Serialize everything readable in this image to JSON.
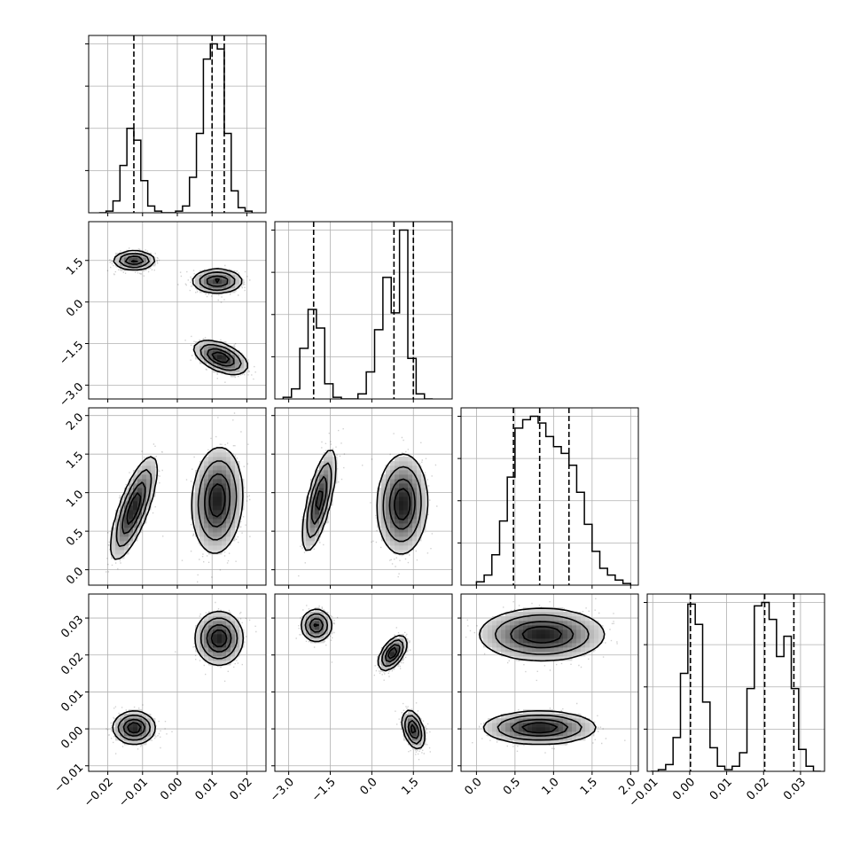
{
  "chart_data": {
    "type": "corner",
    "n_params": 4,
    "parameters": [
      {
        "name": "",
        "range": [
          -0.0255,
          0.0255
        ],
        "ticks": [
          -0.02,
          -0.01,
          0.0,
          0.01,
          0.02
        ],
        "tick_labels": [
          "−0.02",
          "−0.01",
          "0.00",
          "0.01",
          "0.02"
        ],
        "quantiles": [
          -0.0125,
          0.01,
          0.0135
        ],
        "hist": {
          "bin_edges": [
            -0.0225,
            -0.0205,
            -0.0185,
            -0.0165,
            -0.0145,
            -0.0125,
            -0.0105,
            -0.0085,
            -0.0065,
            -0.0045,
            -0.0025,
            -0.0005,
            0.0015,
            0.0035,
            0.0055,
            0.0075,
            0.0095,
            0.0115,
            0.0135,
            0.0155,
            0.0175,
            0.0195,
            0.0215
          ],
          "counts": [
            0.0,
            0.01,
            0.07,
            0.28,
            0.5,
            0.43,
            0.19,
            0.04,
            0.01,
            0.0,
            0.0,
            0.01,
            0.04,
            0.21,
            0.47,
            0.91,
            1.0,
            0.97,
            0.47,
            0.13,
            0.03,
            0.01
          ]
        }
      },
      {
        "name": "",
        "range": [
          -3.5,
          2.9
        ],
        "ticks": [
          -3.0,
          -1.5,
          0.0,
          1.5
        ],
        "tick_labels": [
          "−3.0",
          "−1.5",
          "0.0",
          "1.5"
        ],
        "quantiles": [
          -2.1,
          0.8,
          1.5
        ],
        "hist": {
          "bin_edges": [
            -3.2,
            -2.9,
            -2.6,
            -2.3,
            -2.0,
            -1.7,
            -1.4,
            -1.1,
            -0.8,
            -0.5,
            -0.2,
            0.1,
            0.4,
            0.7,
            1.0,
            1.3,
            1.6,
            1.9,
            2.2
          ],
          "counts": [
            0.01,
            0.06,
            0.3,
            0.53,
            0.42,
            0.09,
            0.01,
            0.0,
            0.0,
            0.03,
            0.16,
            0.41,
            0.72,
            0.51,
            1.0,
            0.24,
            0.03,
            0.0
          ]
        }
      },
      {
        "name": "",
        "range": [
          -0.2,
          2.1
        ],
        "ticks": [
          0.0,
          0.5,
          1.0,
          1.5,
          2.0
        ],
        "tick_labels": [
          "0.0",
          "0.5",
          "1.0",
          "1.5",
          "2.0"
        ],
        "quantiles": [
          0.48,
          0.82,
          1.2
        ],
        "hist": {
          "bin_edges": [
            0.0,
            0.1,
            0.2,
            0.3,
            0.4,
            0.5,
            0.6,
            0.7,
            0.8,
            0.9,
            1.0,
            1.1,
            1.2,
            1.3,
            1.4,
            1.5,
            1.6,
            1.7,
            1.8,
            1.9,
            2.0
          ],
          "counts": [
            0.02,
            0.06,
            0.18,
            0.38,
            0.64,
            0.93,
            0.98,
            1.0,
            0.96,
            0.88,
            0.82,
            0.78,
            0.71,
            0.55,
            0.36,
            0.2,
            0.1,
            0.06,
            0.03,
            0.01
          ]
        }
      },
      {
        "name": "",
        "range": [
          -0.0115,
          0.0365
        ],
        "ticks": [
          -0.01,
          0.0,
          0.01,
          0.02,
          0.03
        ],
        "tick_labels": [
          "−0.01",
          "0.00",
          "0.01",
          "0.02",
          "0.03"
        ],
        "quantiles": [
          0.0002,
          0.0203,
          0.0282
        ],
        "hist": {
          "bin_edges": [
            -0.0105,
            -0.0085,
            -0.0065,
            -0.0045,
            -0.0025,
            -0.0005,
            0.0015,
            0.0035,
            0.0055,
            0.0075,
            0.0095,
            0.0115,
            0.0135,
            0.0155,
            0.0175,
            0.0195,
            0.0215,
            0.0235,
            0.0255,
            0.0275,
            0.0295,
            0.0315,
            0.0335,
            0.0355
          ],
          "counts": [
            0.0,
            0.01,
            0.04,
            0.2,
            0.58,
            0.99,
            0.87,
            0.41,
            0.14,
            0.03,
            0.01,
            0.03,
            0.11,
            0.49,
            0.98,
            1.0,
            0.9,
            0.68,
            0.8,
            0.49,
            0.13,
            0.03,
            0.0
          ]
        }
      }
    ],
    "joint": [
      {
        "row": 1,
        "col": 0,
        "modes": [
          {
            "mean": [
              -0.0124,
              1.5
            ],
            "sd": [
              0.003,
              0.17
            ],
            "corr": 0.0,
            "weight": 1.0
          },
          {
            "mean": [
              0.0115,
              0.75
            ],
            "sd": [
              0.0036,
              0.22
            ],
            "corr": 0.0,
            "weight": 1.0
          },
          {
            "mean": [
              0.0125,
              -2.0
            ],
            "sd": [
              0.0038,
              0.3
            ],
            "corr": -0.5,
            "weight": 1.0
          }
        ]
      },
      {
        "row": 2,
        "col": 0,
        "modes": [
          {
            "mean": [
              -0.0125,
              0.8
            ],
            "sd": [
              0.0033,
              0.33
            ],
            "corr": 0.75,
            "weight": 0.8
          },
          {
            "mean": [
              0.0115,
              0.9
            ],
            "sd": [
              0.0036,
              0.34
            ],
            "corr": 0.1,
            "weight": 1.2
          }
        ]
      },
      {
        "row": 2,
        "col": 1,
        "modes": [
          {
            "mean": [
              -1.9,
              0.9
            ],
            "sd": [
              0.3,
              0.33
            ],
            "corr": 0.7,
            "weight": 0.8
          },
          {
            "mean": [
              1.1,
              0.85
            ],
            "sd": [
              0.45,
              0.32
            ],
            "corr": 0.05,
            "weight": 1.2
          }
        ]
      },
      {
        "row": 3,
        "col": 0,
        "modes": [
          {
            "mean": [
              -0.0124,
              0.0003
            ],
            "sd": [
              0.003,
              0.0022
            ],
            "corr": 0.0,
            "weight": 1.0
          },
          {
            "mean": [
              0.012,
              0.0245
            ],
            "sd": [
              0.0034,
              0.0036
            ],
            "corr": 0.0,
            "weight": 1.0
          }
        ]
      },
      {
        "row": 3,
        "col": 1,
        "modes": [
          {
            "mean": [
              -2.0,
              0.028
            ],
            "sd": [
              0.28,
              0.0022
            ],
            "corr": 0.0,
            "weight": 1.0
          },
          {
            "mean": [
              0.75,
              0.0205
            ],
            "sd": [
              0.25,
              0.0023
            ],
            "corr": 0.55,
            "weight": 1.0
          },
          {
            "mean": [
              1.5,
              -0.0002
            ],
            "sd": [
              0.2,
              0.0026
            ],
            "corr": -0.4,
            "weight": 1.0
          }
        ]
      },
      {
        "row": 3,
        "col": 2,
        "modes": [
          {
            "mean": [
              0.85,
              0.0255
            ],
            "sd": [
              0.4,
              0.0035
            ],
            "corr": 0.0,
            "weight": 1.0
          },
          {
            "mean": [
              0.82,
              0.0003
            ],
            "sd": [
              0.36,
              0.0022
            ],
            "corr": 0.0,
            "weight": 1.0
          }
        ]
      }
    ],
    "grid": true,
    "title": "",
    "legend": "none"
  }
}
